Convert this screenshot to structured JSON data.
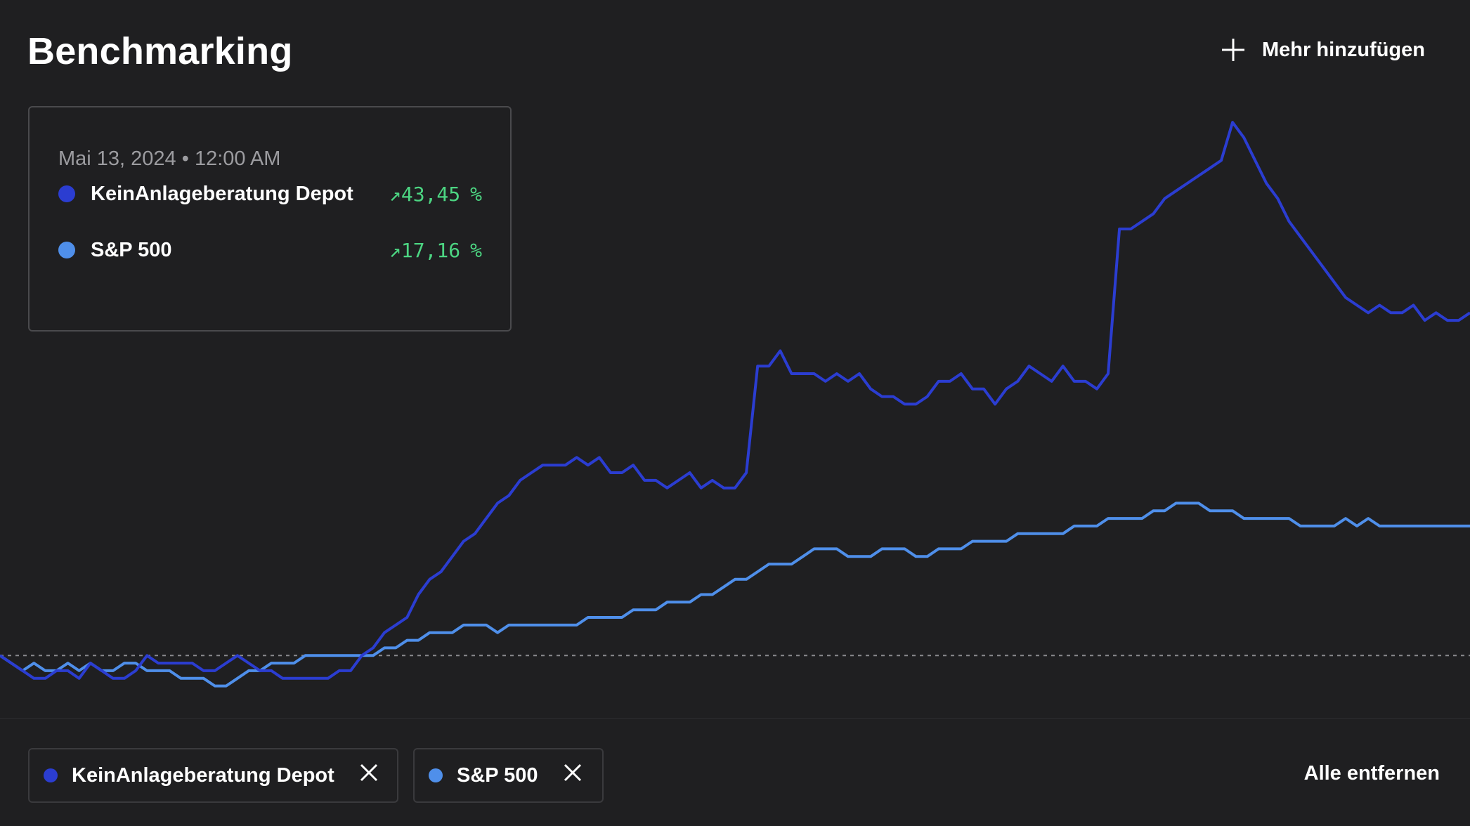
{
  "header": {
    "title": "Benchmarking",
    "add_more_label": "Mehr hinzufügen",
    "add_icon": "plus-icon"
  },
  "tooltip": {
    "date": "Mai 13, 2024 • 12:00 AM",
    "rows": [
      {
        "name": "KeinAnlageberatung Depot",
        "arrow": "↗",
        "value": "43,45",
        "unit": "%",
        "color": "#2b3dd1"
      },
      {
        "name": "S&P 500",
        "arrow": "↗",
        "value": "17,16",
        "unit": "%",
        "color": "#4f8fea"
      }
    ]
  },
  "chips": [
    {
      "label": "KeinAnlageberatung Depot",
      "color": "#2b3dd1",
      "close_icon": "close-icon"
    },
    {
      "label": "S&P 500",
      "color": "#4f8fea",
      "close_icon": "close-icon"
    }
  ],
  "remove_all_label": "Alle entfernen",
  "colors": {
    "background": "#1f1f21",
    "depot": "#2b3dd1",
    "sp500": "#4f8fea",
    "positive": "#4cd582",
    "baseline": "#8a8a8e"
  },
  "chart_data": {
    "type": "line",
    "title": "",
    "xlabel": "",
    "ylabel": "",
    "grid": false,
    "legend": "none",
    "baseline_value": 0,
    "ylim": [
      -8,
      75
    ],
    "series": [
      {
        "name": "KeinAnlageberatung Depot",
        "color": "#2b3dd1",
        "values": [
          0,
          -1,
          -2,
          -3,
          -3,
          -2,
          -2,
          -3,
          -1,
          -2,
          -3,
          -3,
          -2,
          0,
          -1,
          -1,
          -1,
          -1,
          -2,
          -2,
          -1,
          0,
          -1,
          -2,
          -2,
          -3,
          -3,
          -3,
          -3,
          -3,
          -2,
          -2,
          0,
          1,
          3,
          4,
          5,
          8,
          10,
          11,
          13,
          15,
          16,
          18,
          20,
          21,
          23,
          24,
          25,
          25,
          25,
          26,
          25,
          26,
          24,
          24,
          25,
          23,
          23,
          22,
          23,
          24,
          22,
          23,
          22,
          22,
          24,
          38,
          38,
          40,
          37,
          37,
          37,
          36,
          37,
          36,
          37,
          35,
          34,
          34,
          33,
          33,
          34,
          36,
          36,
          37,
          35,
          35,
          33,
          35,
          36,
          38,
          37,
          36,
          38,
          36,
          36,
          35,
          37,
          56,
          56,
          57,
          58,
          60,
          61,
          62,
          63,
          64,
          65,
          70,
          68,
          65,
          62,
          60,
          57,
          55,
          53,
          51,
          49,
          47,
          46,
          45,
          46,
          45,
          45,
          46,
          44,
          45,
          44,
          44,
          45
        ]
      },
      {
        "name": "S&P 500",
        "color": "#4f8fea",
        "values": [
          0,
          -1,
          -2,
          -1,
          -2,
          -2,
          -1,
          -2,
          -1,
          -2,
          -2,
          -1,
          -1,
          -2,
          -2,
          -2,
          -3,
          -3,
          -3,
          -4,
          -4,
          -3,
          -2,
          -2,
          -1,
          -1,
          -1,
          0,
          0,
          0,
          0,
          0,
          0,
          0,
          1,
          1,
          2,
          2,
          3,
          3,
          3,
          4,
          4,
          4,
          3,
          4,
          4,
          4,
          4,
          4,
          4,
          4,
          5,
          5,
          5,
          5,
          6,
          6,
          6,
          7,
          7,
          7,
          8,
          8,
          9,
          10,
          10,
          11,
          12,
          12,
          12,
          13,
          14,
          14,
          14,
          13,
          13,
          13,
          14,
          14,
          14,
          13,
          13,
          14,
          14,
          14,
          15,
          15,
          15,
          15,
          16,
          16,
          16,
          16,
          16,
          17,
          17,
          17,
          18,
          18,
          18,
          18,
          19,
          19,
          20,
          20,
          20,
          19,
          19,
          19,
          18,
          18,
          18,
          18,
          18,
          17,
          17,
          17,
          17,
          18,
          17,
          18,
          17,
          17,
          17,
          17,
          17,
          17,
          17,
          17,
          17
        ]
      }
    ]
  }
}
